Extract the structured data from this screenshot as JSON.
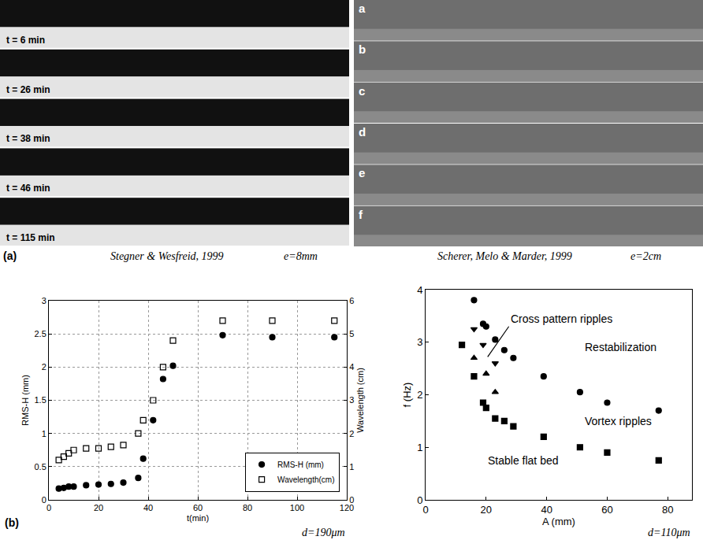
{
  "photos": [
    {
      "label": "(a)",
      "caption": "Stegner & Wesfreid, 1999",
      "note": "e=8mm",
      "frames": [
        "t = 6 min",
        "t = 26 min",
        "t = 38 min",
        "t = 46 min",
        "t = 115 min"
      ]
    },
    {
      "caption": "Scherer, Melo & Marder, 1999",
      "note": "e=2cm",
      "frames": [
        "a",
        "b",
        "c",
        "d",
        "e",
        "f"
      ]
    }
  ],
  "chart_data": [
    {
      "type": "scatter",
      "label": "(b)",
      "note": "d=190μm",
      "x_label": "t(min)",
      "y_label": "RMS-H (mm)",
      "y2_label": "Wavelength (cm)",
      "xlim": [
        0,
        120
      ],
      "xticks": [
        0,
        20,
        40,
        60,
        80,
        100,
        120
      ],
      "ylim": [
        0,
        3
      ],
      "yticks": [
        0,
        0.5,
        1,
        1.5,
        2,
        2.5,
        3
      ],
      "y2lim": [
        0,
        6
      ],
      "y2ticks": [
        0,
        1,
        2,
        3,
        4,
        5,
        6
      ],
      "grid": true,
      "legend": "lower right",
      "series": [
        {
          "name": "RMS-H (mm)",
          "marker": "circle",
          "color": "#000000",
          "x": [
            4,
            6,
            8,
            10,
            15,
            20,
            25,
            30,
            36,
            38,
            42,
            46,
            50,
            70,
            90,
            115
          ],
          "values": [
            0.17,
            0.18,
            0.2,
            0.2,
            0.22,
            0.23,
            0.24,
            0.26,
            0.33,
            0.62,
            1.2,
            1.82,
            2.02,
            2.48,
            2.45,
            2.45
          ]
        },
        {
          "name": "Wavelength(cm)",
          "marker": "square-open",
          "color": "#000000",
          "axis": "y2",
          "x": [
            4,
            6,
            8,
            10,
            15,
            20,
            25,
            30,
            36,
            38,
            42,
            46,
            50,
            70,
            90,
            115
          ],
          "values": [
            1.2,
            1.3,
            1.4,
            1.5,
            1.55,
            1.55,
            1.6,
            1.65,
            2.0,
            2.4,
            3.0,
            4.0,
            4.8,
            5.4,
            5.4,
            5.4
          ]
        }
      ]
    },
    {
      "type": "scatter",
      "note": "d=110μm",
      "x_label": "A (mm)",
      "y_label": "f (Hz)",
      "xlim": [
        0,
        88
      ],
      "xticks": [
        0,
        20,
        40,
        60,
        80
      ],
      "ylim": [
        0,
        4
      ],
      "yticks": [
        0,
        1,
        2,
        3,
        4
      ],
      "grid": false,
      "series": [
        {
          "marker": "circle",
          "color": "#000000",
          "x": [
            16,
            19,
            20,
            23,
            26,
            29,
            39,
            51,
            60,
            77
          ],
          "values": [
            3.8,
            3.35,
            3.3,
            3.05,
            2.85,
            2.7,
            2.35,
            2.05,
            1.85,
            1.7
          ]
        },
        {
          "marker": "square",
          "color": "#000000",
          "x": [
            12,
            16,
            19,
            20,
            23,
            26,
            29,
            39,
            51,
            60,
            77
          ],
          "values": [
            2.95,
            2.35,
            1.85,
            1.75,
            1.55,
            1.5,
            1.4,
            1.2,
            1.0,
            0.9,
            0.75
          ]
        },
        {
          "marker": "triangle-down",
          "color": "#000000",
          "x": [
            16,
            19,
            23
          ],
          "values": [
            3.25,
            2.95,
            2.6
          ]
        },
        {
          "marker": "triangle-up",
          "color": "#000000",
          "x": [
            16,
            20,
            23
          ],
          "values": [
            2.7,
            2.4,
            2.05
          ]
        }
      ],
      "annotations": [
        {
          "text": "Cross pattern ripples",
          "x": 20.5,
          "y": 2.72,
          "text_x": 27.5,
          "text_y": 3.3
        },
        {
          "text": "Restabilization",
          "x": 52,
          "y": 2.9
        },
        {
          "text": "Vortex ripples",
          "x": 52,
          "y": 1.5
        },
        {
          "text": "Stable flat bed",
          "x": 20,
          "y": 0.75
        }
      ]
    }
  ]
}
